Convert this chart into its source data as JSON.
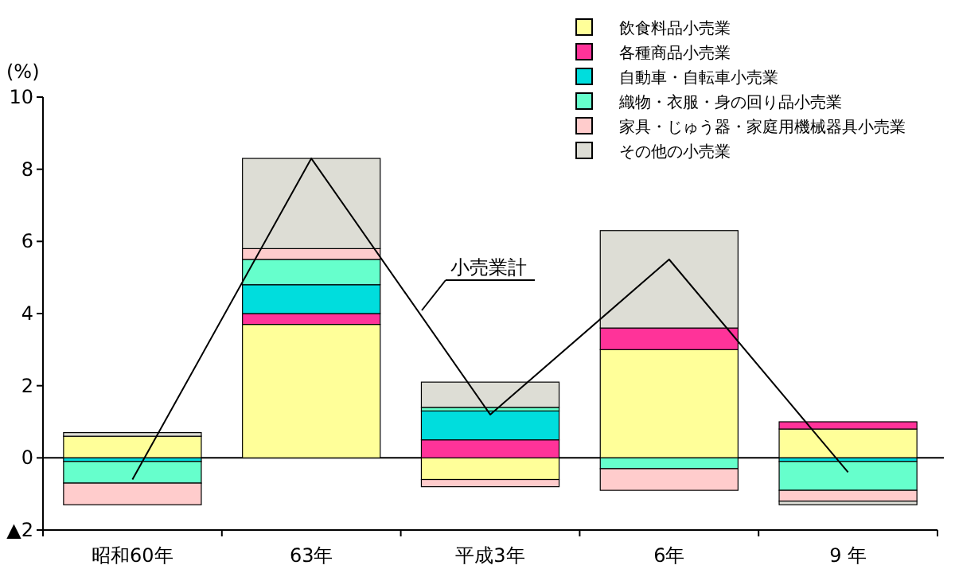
{
  "chart_data": {
    "type": "bar",
    "stacked": true,
    "ylabel": "(%)",
    "categories": [
      "昭和60年",
      "63年",
      "平成3年",
      "6年",
      "9 年"
    ],
    "series": [
      {
        "name": "飲食料品小売業",
        "color": "#ffff99",
        "values": [
          0.6,
          3.7,
          -0.6,
          3.0,
          0.8
        ]
      },
      {
        "name": "各種商品小売業",
        "color": "#ff3399",
        "values": [
          null,
          0.3,
          0.5,
          0.6,
          0.2
        ]
      },
      {
        "name": "自動車・自転車小売業",
        "color": "#00dddd",
        "values": [
          -0.1,
          0.8,
          0.8,
          null,
          -0.1
        ]
      },
      {
        "name": "織物・衣服・身の回り品小売業",
        "color": "#66ffcc",
        "values": [
          -0.6,
          0.7,
          0.1,
          -0.3,
          -0.8
        ]
      },
      {
        "name": "家具・じゅう器・家庭用機械器具小売業",
        "color": "#ffcccc",
        "values": [
          -0.6,
          0.3,
          -0.2,
          -0.6,
          -0.3
        ]
      },
      {
        "name": "その他の小売業",
        "color": "#ddddd5",
        "values": [
          0.1,
          2.5,
          0.7,
          2.7,
          -0.1
        ]
      },
      {
        "name": "小売業計",
        "type": "line",
        "color": "#000000",
        "values": [
          -0.6,
          8.3,
          1.2,
          5.5,
          -0.4
        ]
      }
    ],
    "ylim": [
      -2,
      10
    ],
    "yticks": [
      {
        "value": -2,
        "label": "▲2"
      },
      0,
      2,
      4,
      6,
      8,
      10
    ],
    "legend": "top right"
  }
}
